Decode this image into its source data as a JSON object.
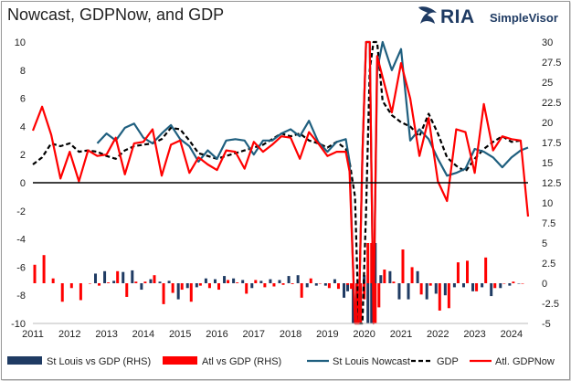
{
  "header": {
    "title": "Nowcast, GDPNow, and GDP",
    "logo_text": "RIA",
    "logo_subtext": "SimpleVisor"
  },
  "chart_data": {
    "type": "line",
    "title": "Nowcast, GDPNow, and GDP",
    "x_ticks": [
      "2011",
      "2012",
      "2013",
      "2014",
      "2015",
      "2016",
      "2017",
      "2018",
      "2019",
      "2020",
      "2021",
      "2022",
      "2023",
      "2024"
    ],
    "y_left": {
      "ylim": [
        -10,
        10
      ],
      "ticks": [
        -10,
        -8,
        -6,
        -4,
        -2,
        0,
        2,
        4,
        6,
        8,
        10
      ]
    },
    "y_right": {
      "ylim": [
        -5,
        30
      ],
      "ticks": [
        "-5",
        "-2.5",
        "0",
        "2.5",
        "5",
        "7.5",
        "10",
        "12.5",
        "15",
        "17.5",
        "20",
        "22.5",
        "25",
        "27.5",
        "30"
      ]
    },
    "colors": {
      "st_louis": "#1f5f7f",
      "atl": "#ff0000",
      "gdp": "#000000",
      "st_louis_bar": "#1f3b63",
      "atl_bar": "#ff0000"
    },
    "series": [
      {
        "name": "GDP",
        "axis": "left",
        "style": "dashed",
        "x": [
          2011.0,
          2011.25,
          2011.5,
          2011.75,
          2012.0,
          2012.25,
          2012.5,
          2012.75,
          2013.0,
          2013.25,
          2013.5,
          2013.75,
          2014.0,
          2014.25,
          2014.5,
          2014.75,
          2015.0,
          2015.25,
          2015.5,
          2015.75,
          2016.0,
          2016.25,
          2016.5,
          2016.75,
          2017.0,
          2017.25,
          2017.5,
          2017.75,
          2018.0,
          2018.25,
          2018.5,
          2018.75,
          2019.0,
          2019.25,
          2019.5,
          2019.6,
          2019.75,
          2019.85,
          2019.95,
          2020.05,
          2020.15,
          2020.25,
          2020.35,
          2020.5,
          2020.75,
          2021.0,
          2021.25,
          2021.5,
          2021.75,
          2022.0,
          2022.25,
          2022.5,
          2022.75,
          2023.0,
          2023.25,
          2023.5,
          2023.75,
          2024.0,
          2024.25
        ],
        "values": [
          1.3,
          1.8,
          2.8,
          2.6,
          2.8,
          2.2,
          2.3,
          2.2,
          1.9,
          1.7,
          2.3,
          2.6,
          2.7,
          2.8,
          3.1,
          3.9,
          3.8,
          3.0,
          2.1,
          1.9,
          1.7,
          1.9,
          2.1,
          2.3,
          2.5,
          2.7,
          3.1,
          3.5,
          3.3,
          3.5,
          3.0,
          2.8,
          2.5,
          2.9,
          2.4,
          1.5,
          -1.0,
          -10.0,
          -10.0,
          -2.0,
          8.0,
          12.0,
          10.0,
          5.8,
          4.8,
          4.3,
          4.0,
          3.3,
          4.9,
          3.5,
          1.8,
          1.2,
          0.8,
          1.7,
          2.4,
          2.9,
          3.3,
          2.9,
          3.0
        ]
      },
      {
        "name": "St Louis Nowcast",
        "axis": "left",
        "style": "solid",
        "x": [
          2012.75,
          2013.0,
          2013.25,
          2013.5,
          2013.75,
          2014.0,
          2014.25,
          2014.5,
          2014.75,
          2015.0,
          2015.25,
          2015.5,
          2015.75,
          2016.0,
          2016.25,
          2016.5,
          2016.75,
          2017.0,
          2017.25,
          2017.5,
          2017.75,
          2018.0,
          2018.25,
          2018.5,
          2018.75,
          2019.0,
          2019.25,
          2019.5,
          2019.6,
          2019.75,
          2019.85,
          2019.95,
          2020.05,
          2020.15,
          2020.25,
          2020.35,
          2020.5,
          2020.75,
          2021.0,
          2021.25,
          2021.5,
          2021.75,
          2022.0,
          2022.25,
          2022.5,
          2022.75,
          2023.0,
          2023.25,
          2023.5,
          2023.75,
          2024.0,
          2024.25,
          2024.45
        ],
        "values": [
          2.8,
          3.5,
          3.0,
          3.9,
          4.2,
          3.2,
          2.8,
          3.5,
          4.1,
          3.1,
          2.6,
          1.5,
          2.3,
          1.7,
          3.0,
          3.1,
          3.0,
          2.0,
          3.0,
          3.0,
          3.5,
          3.8,
          3.3,
          4.4,
          2.9,
          2.2,
          2.9,
          3.1,
          1.5,
          -10,
          -10,
          2.0,
          14.0,
          14.0,
          -10,
          8.0,
          10.0,
          8.0,
          9.5,
          3.0,
          3.8,
          3.1,
          1.7,
          0.5,
          0.7,
          1.0,
          2.4,
          2.2,
          1.8,
          1.1,
          1.8,
          2.3,
          2.5
        ]
      },
      {
        "name": "Atl. GDPNow",
        "axis": "left",
        "style": "solid",
        "x": [
          2011.0,
          2011.25,
          2011.5,
          2011.75,
          2012.0,
          2012.25,
          2012.5,
          2012.75,
          2013.0,
          2013.25,
          2013.5,
          2013.75,
          2014.0,
          2014.25,
          2014.5,
          2014.75,
          2015.0,
          2015.25,
          2015.5,
          2015.75,
          2016.0,
          2016.25,
          2016.5,
          2016.75,
          2017.0,
          2017.25,
          2017.5,
          2017.75,
          2018.0,
          2018.25,
          2018.5,
          2018.75,
          2019.0,
          2019.25,
          2019.5,
          2019.6,
          2019.75,
          2019.85,
          2019.95,
          2020.05,
          2020.15,
          2020.25,
          2020.35,
          2020.5,
          2020.75,
          2021.0,
          2021.25,
          2021.5,
          2021.75,
          2022.0,
          2022.25,
          2022.5,
          2022.75,
          2023.0,
          2023.25,
          2023.5,
          2023.75,
          2024.0,
          2024.25,
          2024.45
        ],
        "values": [
          3.7,
          5.4,
          3.4,
          0.3,
          2.2,
          0.1,
          2.3,
          1.9,
          2.0,
          3.2,
          0.6,
          2.8,
          2.9,
          3.8,
          0.5,
          2.7,
          3.0,
          0.7,
          1.8,
          1.3,
          0.9,
          2.3,
          2.2,
          1.0,
          2.9,
          2.2,
          2.7,
          3.3,
          3.2,
          1.7,
          3.6,
          2.8,
          1.9,
          2.2,
          2.2,
          0.8,
          -10,
          -10,
          2.0,
          11.0,
          11.0,
          -10,
          9.0,
          7.5,
          5.0,
          8.5,
          6.0,
          1.9,
          4.6,
          0.1,
          -1.3,
          3.8,
          3.6,
          0.7,
          5.6,
          2.3,
          3.3,
          3.1,
          3.0,
          -2.4
        ]
      },
      {
        "name": "St Louis vs GDP (RHS)",
        "axis": "right",
        "style": "bar",
        "bar_offset": -0.05,
        "x": [
          2012.75,
          2013.0,
          2013.25,
          2013.5,
          2013.75,
          2014.0,
          2014.25,
          2014.5,
          2014.75,
          2015.0,
          2015.25,
          2015.5,
          2015.75,
          2016.0,
          2016.25,
          2016.5,
          2016.75,
          2017.0,
          2017.25,
          2017.5,
          2017.75,
          2018.0,
          2018.25,
          2018.5,
          2018.75,
          2019.0,
          2019.25,
          2019.5,
          2019.6,
          2019.75,
          2019.85,
          2019.95,
          2020.05,
          2020.15,
          2020.25,
          2020.35,
          2020.5,
          2020.75,
          2021.0,
          2021.25,
          2021.5,
          2021.75,
          2022.0,
          2022.25,
          2022.5,
          2022.75,
          2023.0,
          2023.25,
          2023.5,
          2023.75,
          2024.0,
          2024.25
        ],
        "values": [
          1.2,
          1.5,
          0.3,
          1.4,
          1.6,
          -0.8,
          0.5,
          0.2,
          0.3,
          -2.0,
          -0.6,
          -0.5,
          0.6,
          0.5,
          0.9,
          0.6,
          0.4,
          -0.6,
          0.3,
          0.5,
          0.4,
          0.9,
          1.0,
          -0.5,
          -0.3,
          -0.3,
          0.5,
          -1.8,
          -1.0,
          -5.0,
          -5.0,
          -5.0,
          1.0,
          -5.0,
          -5.0,
          5.0,
          1.0,
          1.5,
          -2.0,
          -2.0,
          1.5,
          -2.0,
          -1.3,
          -1.5,
          -0.5,
          -0.5,
          -1.0,
          -0.5,
          -1.6,
          -0.6,
          -0.3,
          0.0
        ]
      },
      {
        "name": "Atl vs GDP (RHS)",
        "axis": "right",
        "style": "bar",
        "bar_offset": 0.05,
        "x": [
          2011.0,
          2011.25,
          2011.5,
          2011.75,
          2012.0,
          2012.25,
          2012.5,
          2012.75,
          2013.0,
          2013.25,
          2013.5,
          2013.75,
          2014.0,
          2014.25,
          2014.5,
          2014.75,
          2015.0,
          2015.25,
          2015.5,
          2015.75,
          2016.0,
          2016.25,
          2016.5,
          2016.75,
          2017.0,
          2017.25,
          2017.5,
          2017.75,
          2018.0,
          2018.25,
          2018.5,
          2018.75,
          2019.0,
          2019.25,
          2019.5,
          2019.6,
          2019.75,
          2019.85,
          2019.95,
          2020.05,
          2020.15,
          2020.25,
          2020.35,
          2020.5,
          2020.75,
          2021.0,
          2021.25,
          2021.5,
          2021.75,
          2022.0,
          2022.25,
          2022.5,
          2022.75,
          2023.0,
          2023.25,
          2023.5,
          2023.75,
          2024.0,
          2024.25
        ],
        "values": [
          2.3,
          3.5,
          0.6,
          -2.3,
          -0.6,
          -2.1,
          0.0,
          -0.3,
          0.1,
          1.5,
          -1.7,
          0.2,
          0.2,
          1.0,
          -2.6,
          -1.2,
          -0.8,
          -2.3,
          -0.3,
          -0.6,
          -0.8,
          0.4,
          0.1,
          -1.3,
          0.4,
          -0.5,
          -0.4,
          -0.2,
          -0.1,
          -1.8,
          0.6,
          0.0,
          -0.6,
          -0.7,
          -0.2,
          -0.7,
          -5.0,
          -5.0,
          -2.0,
          5.0,
          5.0,
          -5.0,
          -3.0,
          1.7,
          0.2,
          4.2,
          2.0,
          -1.4,
          -0.3,
          -3.4,
          -3.1,
          2.6,
          2.8,
          -1.0,
          3.2,
          -0.6,
          0.0,
          0.2,
          0.0
        ]
      }
    ],
    "legend": {
      "position": "bottom"
    }
  }
}
